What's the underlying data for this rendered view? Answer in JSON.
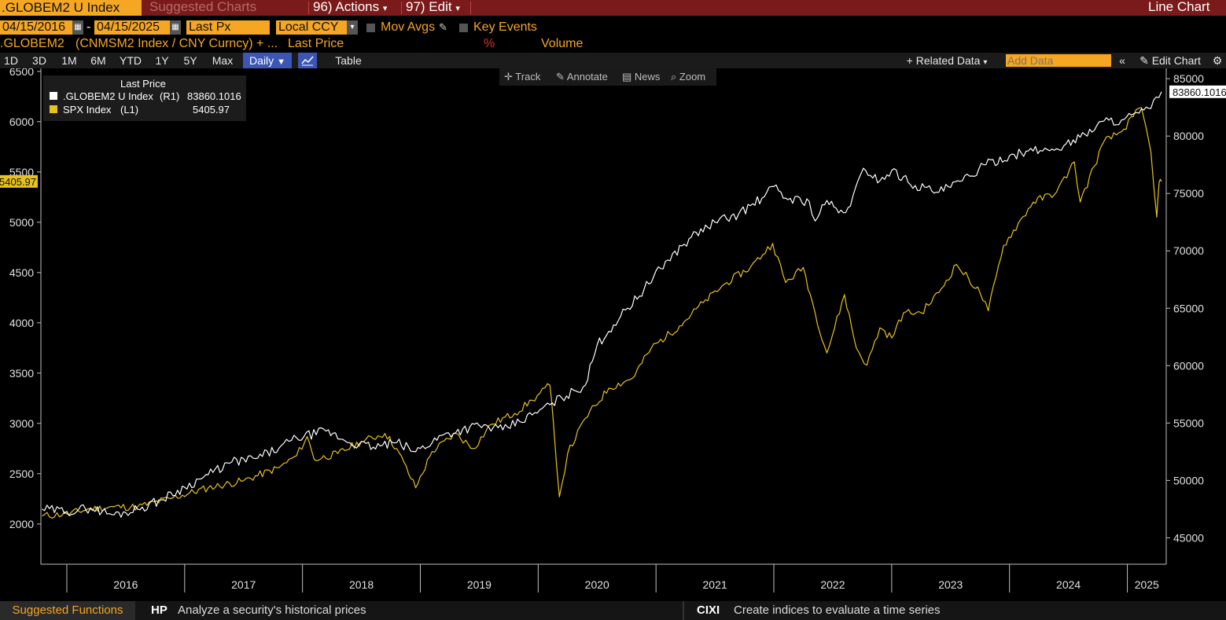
{
  "topbar": {
    "ticker": ".GLOBEM2 U Index",
    "suggested_label": "Suggested Charts",
    "actions_label": "96) Actions",
    "edit_label": "97) Edit",
    "chart_type_label": "Line Chart"
  },
  "controls": {
    "start_date": "04/15/2016",
    "end_date": "04/15/2025",
    "date_separator": "-",
    "price_field": "Last Px",
    "currency": "Local CCY",
    "mov_avgs": "Mov Avgs",
    "key_events": "Key Events"
  },
  "row3": {
    "security": ".GLOBEM2",
    "formula": "(CNMSM2 Index / CNY Curncy) + ...",
    "last_price": "Last Price",
    "percent": "%",
    "volume": "Volume"
  },
  "periods": [
    "1D",
    "3D",
    "1M",
    "6M",
    "YTD",
    "1Y",
    "5Y",
    "Max"
  ],
  "period_select": "Daily",
  "table_label": "Table",
  "related_data": "Related Data",
  "add_data_placeholder": "Add Data",
  "edit_chart": "Edit Chart",
  "tools": {
    "track": "Track",
    "annotate": "Annotate",
    "news": "News",
    "zoom": "Zoom"
  },
  "legend": {
    "header": "Last Price",
    "rows": [
      {
        "name": ".GLOBEM2 U Index",
        "axis": "(R1)",
        "value": "83860.1016",
        "color": "#ffffff"
      },
      {
        "name": "SPX Index",
        "axis": "(L1)",
        "value": "5405.97",
        "color": "#e8c21b"
      }
    ]
  },
  "footer": {
    "suggested": "Suggested Functions",
    "hp_code": "HP",
    "hp_desc": "Analyze a security's historical prices",
    "cixi_code": "CIXI",
    "cixi_desc": "Create indices to evaluate a time series"
  },
  "chart_data": {
    "type": "line",
    "x_unit": "year",
    "xlim": [
      2015.78,
      2025.33
    ],
    "x_ticks": [
      2016,
      2017,
      2018,
      2019,
      2020,
      2021,
      2022,
      2023,
      2024,
      2025
    ],
    "left_axis": {
      "ylim": [
        1600,
        6530
      ],
      "ticks": [
        2000,
        2500,
        3000,
        3500,
        4000,
        4500,
        5000,
        5500,
        6000,
        6500
      ],
      "last_label": "5405.97"
    },
    "right_axis": {
      "ylim": [
        42700,
        85900
      ],
      "ticks": [
        45000,
        50000,
        55000,
        60000,
        65000,
        70000,
        75000,
        80000,
        85000
      ],
      "last_label": "83860.1016"
    },
    "series": [
      {
        "name": "SPX Index",
        "axis": "left",
        "color": "#e8c21b",
        "points": [
          [
            2015.79,
            2080
          ],
          [
            2016.0,
            2100
          ],
          [
            2016.2,
            2150
          ],
          [
            2016.4,
            2170
          ],
          [
            2016.6,
            2170
          ],
          [
            2016.9,
            2260
          ],
          [
            2017.2,
            2360
          ],
          [
            2017.5,
            2430
          ],
          [
            2017.8,
            2560
          ],
          [
            2017.95,
            2680
          ],
          [
            2018.04,
            2870
          ],
          [
            2018.1,
            2640
          ],
          [
            2018.3,
            2700
          ],
          [
            2018.5,
            2820
          ],
          [
            2018.7,
            2900
          ],
          [
            2018.8,
            2750
          ],
          [
            2018.96,
            2360
          ],
          [
            2019.1,
            2720
          ],
          [
            2019.3,
            2900
          ],
          [
            2019.45,
            2750
          ],
          [
            2019.6,
            2990
          ],
          [
            2019.8,
            3100
          ],
          [
            2019.95,
            3230
          ],
          [
            2020.1,
            3380
          ],
          [
            2020.13,
            3000
          ],
          [
            2020.18,
            2270
          ],
          [
            2020.25,
            2700
          ],
          [
            2020.4,
            3050
          ],
          [
            2020.6,
            3350
          ],
          [
            2020.8,
            3450
          ],
          [
            2020.96,
            3750
          ],
          [
            2021.2,
            3970
          ],
          [
            2021.4,
            4200
          ],
          [
            2021.6,
            4400
          ],
          [
            2021.8,
            4550
          ],
          [
            2021.99,
            4790
          ],
          [
            2022.1,
            4400
          ],
          [
            2022.25,
            4550
          ],
          [
            2022.35,
            4100
          ],
          [
            2022.45,
            3700
          ],
          [
            2022.6,
            4280
          ],
          [
            2022.7,
            3750
          ],
          [
            2022.79,
            3580
          ],
          [
            2022.9,
            3950
          ],
          [
            2023.0,
            3850
          ],
          [
            2023.1,
            4100
          ],
          [
            2023.25,
            4100
          ],
          [
            2023.4,
            4300
          ],
          [
            2023.55,
            4580
          ],
          [
            2023.75,
            4300
          ],
          [
            2023.82,
            4120
          ],
          [
            2023.95,
            4770
          ],
          [
            2024.2,
            5200
          ],
          [
            2024.4,
            5300
          ],
          [
            2024.55,
            5600
          ],
          [
            2024.6,
            5200
          ],
          [
            2024.8,
            5800
          ],
          [
            2024.95,
            5900
          ],
          [
            2025.05,
            6050
          ],
          [
            2025.12,
            6140
          ],
          [
            2025.2,
            5700
          ],
          [
            2025.25,
            5050
          ],
          [
            2025.27,
            5400
          ],
          [
            2025.29,
            5405.97
          ]
        ]
      },
      {
        "name": ".GLOBEM2 U Index",
        "axis": "right",
        "color": "#ffffff",
        "points": [
          [
            2015.79,
            47500
          ],
          [
            2016.0,
            47300
          ],
          [
            2016.2,
            47600
          ],
          [
            2016.4,
            47000
          ],
          [
            2016.6,
            47500
          ],
          [
            2016.8,
            48300
          ],
          [
            2017.0,
            49400
          ],
          [
            2017.2,
            50500
          ],
          [
            2017.4,
            51600
          ],
          [
            2017.6,
            51900
          ],
          [
            2017.8,
            52800
          ],
          [
            2017.95,
            53700
          ],
          [
            2018.2,
            54300
          ],
          [
            2018.4,
            53300
          ],
          [
            2018.6,
            52900
          ],
          [
            2018.8,
            53300
          ],
          [
            2018.96,
            52500
          ],
          [
            2019.2,
            54000
          ],
          [
            2019.5,
            54800
          ],
          [
            2019.7,
            54400
          ],
          [
            2019.95,
            55700
          ],
          [
            2020.1,
            56600
          ],
          [
            2020.2,
            57200
          ],
          [
            2020.4,
            58300
          ],
          [
            2020.5,
            61800
          ],
          [
            2020.7,
            64300
          ],
          [
            2020.9,
            66700
          ],
          [
            2021.1,
            69200
          ],
          [
            2021.3,
            71200
          ],
          [
            2021.5,
            72500
          ],
          [
            2021.7,
            73200
          ],
          [
            2021.9,
            74600
          ],
          [
            2022.0,
            75600
          ],
          [
            2022.1,
            74600
          ],
          [
            2022.3,
            74300
          ],
          [
            2022.35,
            72600
          ],
          [
            2022.45,
            74400
          ],
          [
            2022.55,
            73300
          ],
          [
            2022.65,
            73900
          ],
          [
            2022.76,
            77200
          ],
          [
            2022.9,
            76100
          ],
          [
            2023.0,
            77000
          ],
          [
            2023.2,
            75700
          ],
          [
            2023.4,
            75100
          ],
          [
            2023.6,
            76100
          ],
          [
            2023.8,
            77500
          ],
          [
            2024.0,
            78300
          ],
          [
            2024.2,
            78700
          ],
          [
            2024.4,
            78900
          ],
          [
            2024.6,
            79900
          ],
          [
            2024.8,
            81300
          ],
          [
            2024.95,
            81400
          ],
          [
            2025.1,
            82000
          ],
          [
            2025.2,
            82400
          ],
          [
            2025.29,
            83860.1016
          ]
        ]
      }
    ]
  }
}
